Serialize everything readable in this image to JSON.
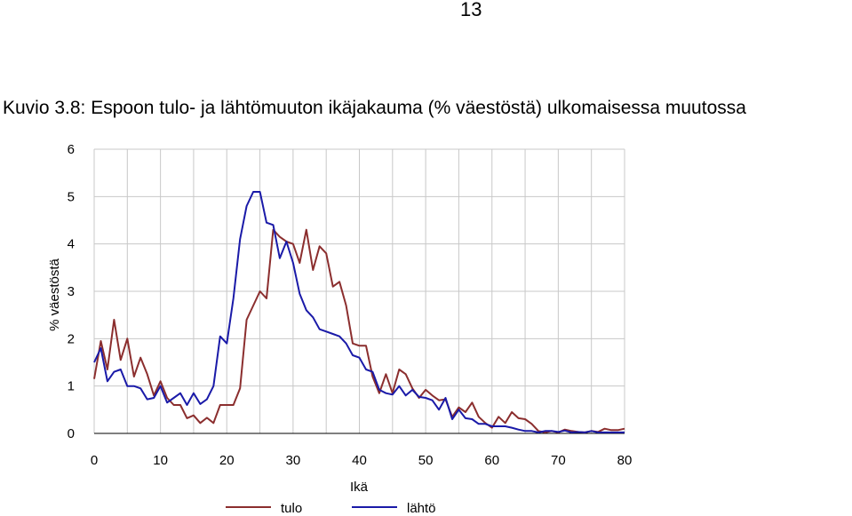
{
  "page": {
    "number": "13"
  },
  "caption": "Kuvio 3.8: Espoon tulo- ja lähtömuuton ikäjakauma (% väestöstä) ulkomaisessa muutossa",
  "colors": {
    "tulo": "#8B2E2E",
    "lahto": "#1A1AA8",
    "grid": "#c8c8c8",
    "axis": "#000000"
  },
  "chart_data": {
    "type": "line",
    "title": "",
    "xlabel": "Ikä",
    "ylabel": "% väestöstä",
    "xlim": [
      0,
      80
    ],
    "ylim": [
      0,
      6
    ],
    "xticks": [
      0,
      10,
      20,
      30,
      40,
      50,
      60,
      70,
      80
    ],
    "yticks": [
      0,
      1,
      2,
      3,
      4,
      5,
      6
    ],
    "grid": true,
    "legend_position": "bottom",
    "x": [
      0,
      1,
      2,
      3,
      4,
      5,
      6,
      7,
      8,
      9,
      10,
      11,
      12,
      13,
      14,
      15,
      16,
      17,
      18,
      19,
      20,
      21,
      22,
      23,
      24,
      25,
      26,
      27,
      28,
      29,
      30,
      31,
      32,
      33,
      34,
      35,
      36,
      37,
      38,
      39,
      40,
      41,
      42,
      43,
      44,
      45,
      46,
      47,
      48,
      49,
      50,
      51,
      52,
      53,
      54,
      55,
      56,
      57,
      58,
      59,
      60,
      61,
      62,
      63,
      64,
      65,
      66,
      67,
      68,
      69,
      70,
      71,
      72,
      73,
      74,
      75,
      76,
      77,
      78,
      79,
      80
    ],
    "series": [
      {
        "name": "tulo",
        "color": "#8B2E2E",
        "values": [
          1.15,
          1.95,
          1.35,
          2.4,
          1.55,
          2.0,
          1.2,
          1.6,
          1.25,
          0.8,
          1.1,
          0.75,
          0.6,
          0.6,
          0.32,
          0.38,
          0.22,
          0.33,
          0.22,
          0.6,
          0.6,
          0.6,
          0.95,
          2.4,
          2.7,
          3.0,
          2.85,
          4.3,
          4.15,
          4.05,
          4.0,
          3.6,
          4.3,
          3.45,
          3.95,
          3.8,
          3.1,
          3.2,
          2.7,
          1.9,
          1.85,
          1.85,
          1.2,
          0.85,
          1.25,
          0.85,
          1.35,
          1.25,
          0.95,
          0.75,
          0.92,
          0.8,
          0.7,
          0.72,
          0.35,
          0.55,
          0.45,
          0.65,
          0.35,
          0.22,
          0.12,
          0.35,
          0.22,
          0.45,
          0.32,
          0.3,
          0.2,
          0.05,
          0.02,
          0.05,
          0.02,
          0.08,
          0.05,
          0.03,
          0.02,
          0.05,
          0.03,
          0.1,
          0.07,
          0.07,
          0.1
        ]
      },
      {
        "name": "lähtö",
        "color": "#1A1AA8",
        "values": [
          1.5,
          1.8,
          1.1,
          1.3,
          1.35,
          1.0,
          1.0,
          0.95,
          0.72,
          0.75,
          1.0,
          0.65,
          0.75,
          0.85,
          0.6,
          0.85,
          0.62,
          0.72,
          1.0,
          2.05,
          1.9,
          2.85,
          4.1,
          4.8,
          5.1,
          5.1,
          4.45,
          4.4,
          3.7,
          4.05,
          3.6,
          2.95,
          2.6,
          2.45,
          2.2,
          2.15,
          2.1,
          2.05,
          1.9,
          1.65,
          1.6,
          1.35,
          1.3,
          0.92,
          0.85,
          0.82,
          1.0,
          0.8,
          0.92,
          0.77,
          0.75,
          0.7,
          0.5,
          0.75,
          0.3,
          0.5,
          0.32,
          0.3,
          0.2,
          0.2,
          0.15,
          0.15,
          0.15,
          0.12,
          0.08,
          0.05,
          0.05,
          0.02,
          0.05,
          0.05,
          0.03,
          0.06,
          0.02,
          0.03,
          0.02,
          0.05,
          0.02,
          0.02,
          0.02,
          0.02,
          0.02
        ]
      }
    ]
  }
}
